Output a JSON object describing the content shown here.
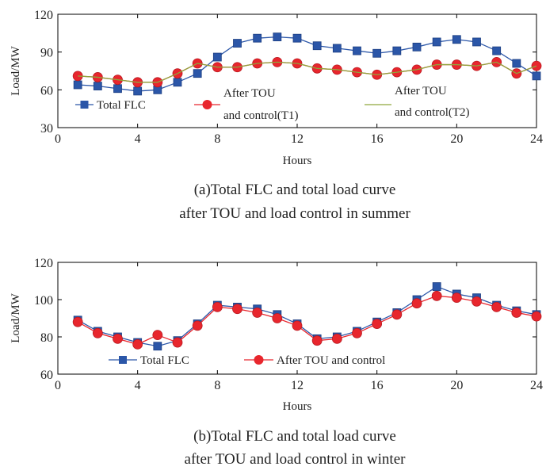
{
  "chart_data": [
    {
      "type": "line",
      "title": "(a)Total FLC and total load curve",
      "subtitle": "after TOU and load control in summer",
      "xlabel": "Hours",
      "ylabel": "Load/MW",
      "xlim": [
        0,
        24
      ],
      "ylim": [
        30,
        120
      ],
      "xticks": [
        0,
        4,
        8,
        12,
        16,
        20,
        24
      ],
      "yticks": [
        30,
        60,
        90,
        120
      ],
      "legend_position": "bottom",
      "x": [
        1,
        2,
        3,
        4,
        5,
        6,
        7,
        8,
        9,
        10,
        11,
        12,
        13,
        14,
        15,
        16,
        17,
        18,
        19,
        20,
        21,
        22,
        23,
        24
      ],
      "series": [
        {
          "name": "Total FLC",
          "legend_label": [
            "Total FLC"
          ],
          "color": "#2b56a8",
          "marker": "square",
          "values": [
            64,
            63,
            61,
            59,
            60,
            66,
            73,
            86,
            97,
            101,
            102,
            101,
            95,
            93,
            91,
            89,
            91,
            94,
            98,
            100,
            98,
            91,
            81,
            71
          ]
        },
        {
          "name": "After TOU and control(T1)",
          "legend_label": [
            "After TOU",
            "and control(T1)"
          ],
          "color": "#e8262d",
          "marker": "circle",
          "values": [
            71,
            70,
            68,
            66,
            66,
            73,
            81,
            78,
            78,
            81,
            82,
            81,
            77,
            76,
            74,
            72,
            74,
            76,
            80,
            80,
            79,
            82,
            73,
            79
          ]
        },
        {
          "name": "After TOU and control(T2)",
          "legend_label": [
            "After TOU",
            "and control(T2)"
          ],
          "color": "#8fa63c",
          "marker": "none",
          "values": [
            71,
            70,
            68,
            66,
            66,
            73,
            81,
            78,
            78,
            81,
            82,
            81,
            77,
            76,
            74,
            72,
            74,
            76,
            80,
            80,
            79,
            82,
            73,
            79
          ]
        }
      ]
    },
    {
      "type": "line",
      "title": "(b)Total FLC and total load curve",
      "subtitle": "after TOU and load control in winter",
      "xlabel": "Hours",
      "ylabel": "Load/MW",
      "xlim": [
        0,
        24
      ],
      "ylim": [
        60,
        120
      ],
      "xticks": [
        0,
        4,
        8,
        12,
        16,
        20,
        24
      ],
      "yticks": [
        60,
        80,
        100,
        120
      ],
      "legend_position": "bottom",
      "x": [
        1,
        2,
        3,
        4,
        5,
        6,
        7,
        8,
        9,
        10,
        11,
        12,
        13,
        14,
        15,
        16,
        17,
        18,
        19,
        20,
        21,
        22,
        23,
        24
      ],
      "series": [
        {
          "name": "Total FLC",
          "legend_label": [
            "Total FLC"
          ],
          "color": "#2b56a8",
          "marker": "square",
          "values": [
            89,
            83,
            80,
            77,
            75,
            78,
            87,
            97,
            96,
            95,
            92,
            87,
            79,
            80,
            83,
            88,
            93,
            100,
            107,
            103,
            101,
            97,
            94,
            92
          ]
        },
        {
          "name": "After TOU and control",
          "legend_label": [
            "After TOU and control"
          ],
          "color": "#e8262d",
          "marker": "circle",
          "values": [
            88,
            82,
            79,
            76,
            81,
            77,
            86,
            96,
            95,
            93,
            90,
            86,
            78,
            79,
            82,
            87,
            92,
            98,
            102,
            101,
            99,
            96,
            93,
            91
          ]
        }
      ]
    }
  ]
}
